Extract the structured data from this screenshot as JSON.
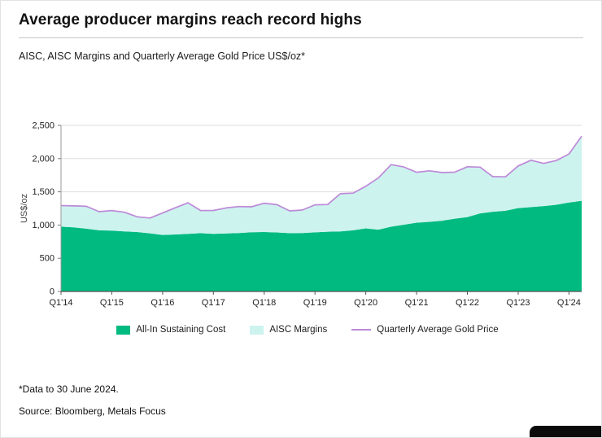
{
  "page": {
    "title": "Average producer margins reach record highs",
    "subtitle": "AISC, AISC Margins and Quarterly Average Gold Price US$/oz*",
    "footnote": "*Data to 30 June 2024.",
    "source": "Source: Bloomberg, Metals Focus"
  },
  "legend": [
    {
      "label": "All-In Sustaining Cost",
      "color": "#00ba80",
      "type": "area"
    },
    {
      "label": "AISC Margins",
      "color": "#cdf3ef",
      "type": "area"
    },
    {
      "label": "Quarterly Average Gold Price",
      "color": "#bd8ad8",
      "type": "line"
    }
  ],
  "chart_data": {
    "type": "area",
    "title": "AISC, AISC Margins and Quarterly Average Gold Price US$/oz",
    "ylabel": "US$/oz",
    "ylim": [
      0,
      2500
    ],
    "yticks": [
      0,
      500,
      1000,
      1500,
      2000,
      2500
    ],
    "ytick_labels": [
      "0",
      "500",
      "1,000",
      "1,500",
      "2,000",
      "2,500"
    ],
    "grid": "horizontal",
    "legend_position": "bottom",
    "xtick_every": 4,
    "x": [
      "Q1'14",
      "Q2'14",
      "Q3'14",
      "Q4'14",
      "Q1'15",
      "Q2'15",
      "Q3'15",
      "Q4'15",
      "Q1'16",
      "Q2'16",
      "Q3'16",
      "Q4'16",
      "Q1'17",
      "Q2'17",
      "Q3'17",
      "Q4'17",
      "Q1'18",
      "Q2'18",
      "Q3'18",
      "Q4'18",
      "Q1'19",
      "Q2'19",
      "Q3'19",
      "Q4'19",
      "Q1'20",
      "Q2'20",
      "Q3'20",
      "Q4'20",
      "Q1'21",
      "Q2'21",
      "Q3'21",
      "Q4'21",
      "Q1'22",
      "Q2'22",
      "Q3'22",
      "Q4'22",
      "Q1'23",
      "Q2'23",
      "Q3'23",
      "Q4'23",
      "Q1'24",
      "Q2'24"
    ],
    "series": [
      {
        "name": "All-In Sustaining Cost",
        "color": "#00ba80",
        "values": [
          975,
          965,
          945,
          920,
          915,
          905,
          895,
          875,
          850,
          858,
          868,
          878,
          868,
          872,
          880,
          892,
          895,
          888,
          877,
          880,
          890,
          900,
          905,
          920,
          950,
          930,
          975,
          1005,
          1035,
          1048,
          1065,
          1095,
          1120,
          1175,
          1200,
          1215,
          1255,
          1270,
          1285,
          1305,
          1340,
          1365
        ]
      },
      {
        "name": "AISC Margins",
        "color": "#cdf3ef",
        "values": [
          318,
          323,
          337,
          281,
          303,
          287,
          229,
          231,
          331,
          402,
          467,
          340,
          351,
          385,
          398,
          383,
          434,
          418,
          336,
          346,
          414,
          409,
          567,
          561,
          633,
          781,
          934,
          869,
          759,
          768,
          725,
          700,
          757,
          696,
          529,
          510,
          635,
          706,
          643,
          666,
          730,
          973
        ]
      },
      {
        "name": "Quarterly Average Gold Price",
        "color": "#bd8ad8",
        "values": [
          1293,
          1288,
          1282,
          1201,
          1218,
          1192,
          1124,
          1106,
          1181,
          1260,
          1335,
          1218,
          1219,
          1257,
          1278,
          1275,
          1329,
          1306,
          1213,
          1226,
          1304,
          1309,
          1472,
          1481,
          1583,
          1711,
          1909,
          1874,
          1794,
          1816,
          1790,
          1795,
          1877,
          1871,
          1729,
          1725,
          1890,
          1976,
          1928,
          1971,
          2070,
          2338
        ]
      }
    ]
  }
}
